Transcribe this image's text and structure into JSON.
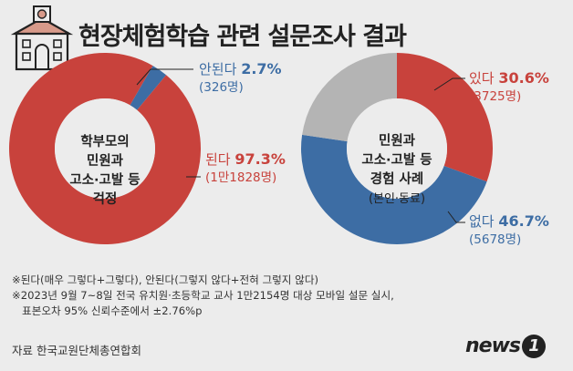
{
  "title": "현장체험학습 관련 설문조사 결과",
  "colors": {
    "red": "#c8423c",
    "blue": "#3d6da4",
    "gray": "#b4b4b4",
    "bg": "#ececec"
  },
  "chart_data": [
    {
      "type": "pie",
      "center_label": [
        "학부모의",
        "민원과",
        "고소·고발 등",
        "걱정"
      ],
      "slices": [
        {
          "label": "안된다",
          "value": 2.7,
          "pct_text": "2.7%",
          "count_text": "(326명)",
          "color": "#3d6da4"
        },
        {
          "label": "된다",
          "value": 97.3,
          "pct_text": "97.3%",
          "count_text": "(1만1828명)",
          "color": "#c8423c"
        }
      ]
    },
    {
      "type": "pie",
      "center_label": [
        "민원과",
        "고소·고발 등",
        "경험 사례"
      ],
      "center_sub": "(본인·동료)",
      "slices": [
        {
          "label": "있다",
          "value": 30.6,
          "pct_text": "30.6%",
          "count_text": "(3725명)",
          "color": "#c8423c"
        },
        {
          "label": "없다",
          "value": 46.7,
          "pct_text": "46.7%",
          "count_text": "(5678명)",
          "color": "#3d6da4"
        },
        {
          "label": "",
          "value": 22.7,
          "color": "#b4b4b4"
        }
      ]
    }
  ],
  "notes": [
    "※된다(매우 그렇다+그렇다), 안된다(그렇지 않다+전혀 그렇지 않다)",
    "※2023년 9월 7~8일 전국 유치원·초등학교 교사 1만2154명 대상 모바일 설문 실시,",
    "   표본오차 95% 신뢰수준에서 ±2.76%p"
  ],
  "source": "자료 한국교원단체총연합회",
  "logo": {
    "text": "news",
    "num": "1"
  }
}
